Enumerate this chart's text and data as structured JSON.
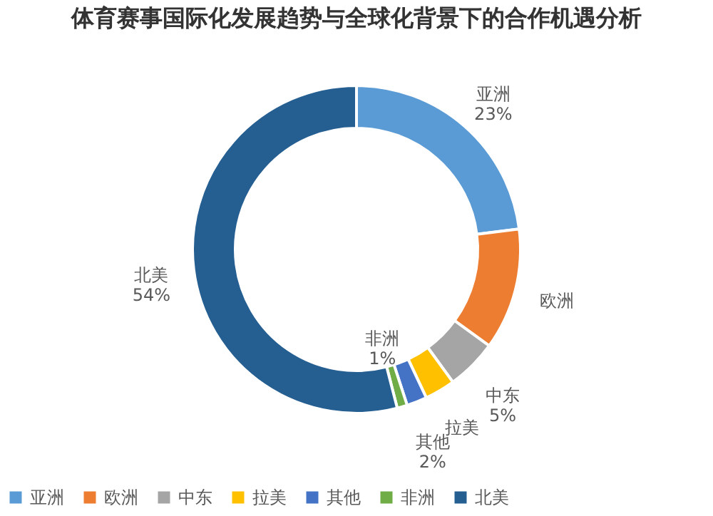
{
  "chart_data": {
    "type": "donut",
    "title": "体育赛事国际化发展趋势与全球化背景下的合作机遇分析",
    "categories": [
      "亚洲",
      "欧洲",
      "中东",
      "拉美",
      "其他",
      "非洲",
      "北美"
    ],
    "values": [
      23,
      12,
      5,
      3,
      2,
      1,
      54
    ],
    "value_labels": [
      "23%",
      null,
      "5%",
      null,
      "2%",
      "1%",
      "54%"
    ],
    "colors": [
      "#5b9bd5",
      "#ed7d31",
      "#a5a5a5",
      "#ffc000",
      "#4472c4",
      "#70ad47",
      "#255e91"
    ],
    "legend": "bottom"
  }
}
